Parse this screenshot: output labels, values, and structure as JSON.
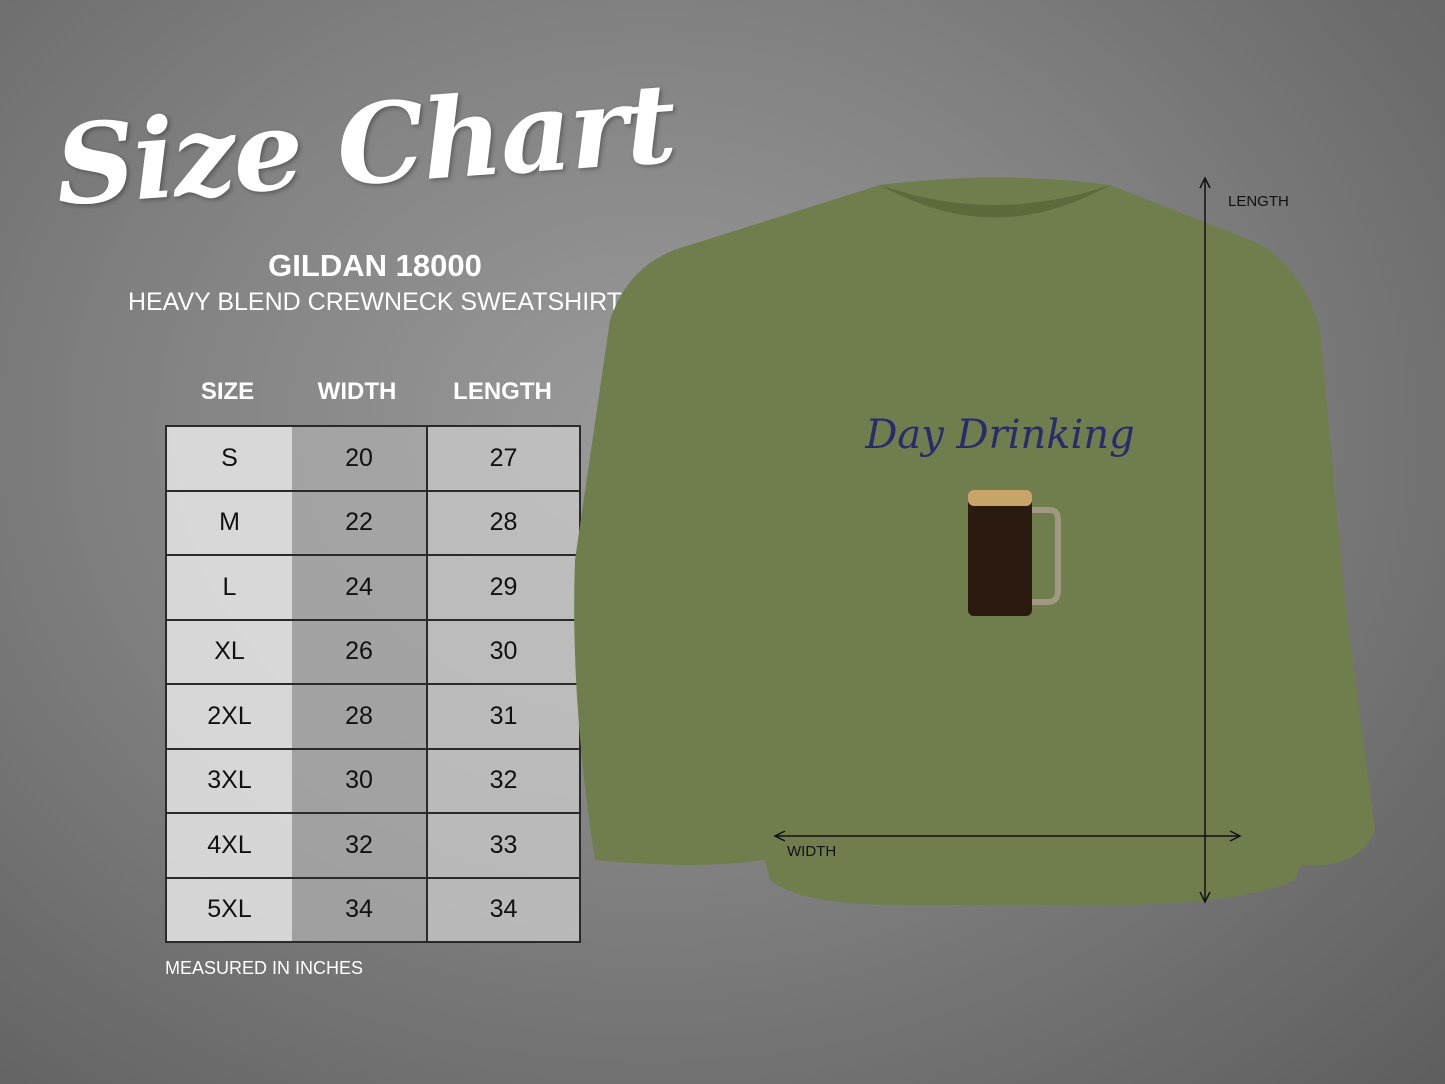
{
  "title": "Size Chart",
  "model": "GILDAN 18000",
  "subtitle": "HEAVY BLEND CREWNECK SWEATSHIRT",
  "table": {
    "headers": [
      "SIZE",
      "WIDTH",
      "LENGTH"
    ],
    "rows": [
      [
        "S",
        "20",
        "27"
      ],
      [
        "M",
        "22",
        "28"
      ],
      [
        "L",
        "24",
        "29"
      ],
      [
        "XL",
        "26",
        "30"
      ],
      [
        "2XL",
        "28",
        "31"
      ],
      [
        "3XL",
        "30",
        "32"
      ],
      [
        "4XL",
        "32",
        "33"
      ],
      [
        "5XL",
        "34",
        "34"
      ]
    ]
  },
  "note": "MEASURED IN INCHES",
  "garment": {
    "color": "#6f7e4c",
    "design_text": "Day Drinking",
    "design_color": "#2a2a6e"
  },
  "dimension_labels": {
    "length": "LENGTH",
    "width": "WIDTH"
  }
}
